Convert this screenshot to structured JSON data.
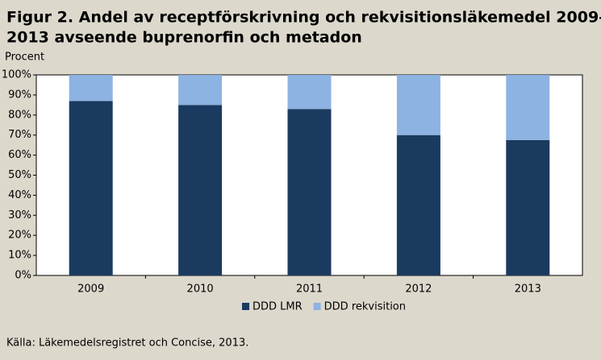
{
  "chart_data": {
    "type": "stacked_bar",
    "title": [
      "Figur 2. Andel av receptförskrivning och rekvisitionsläkemedel 2009–",
      "2013 avseende buprenorfin och metadon"
    ],
    "y_label": "Procent",
    "source": "Källa: Läkemedelsregistret och Concise, 2013.",
    "categories": [
      "2009",
      "2010",
      "2011",
      "2012",
      "2013"
    ],
    "series": [
      {
        "name": "DDD LMR",
        "color": "#1b3a5f",
        "values": [
          87,
          85,
          83,
          70,
          67.5
        ]
      },
      {
        "name": "DDD rekvisition",
        "color": "#8db3e2",
        "values": [
          13,
          15,
          17,
          30,
          32.5
        ]
      }
    ],
    "ylim": [
      0,
      100
    ],
    "yticks": [
      {
        "value": 0,
        "label": "0%"
      },
      {
        "value": 10,
        "label": "10%"
      },
      {
        "value": 20,
        "label": "20%"
      },
      {
        "value": 30,
        "label": "30%"
      },
      {
        "value": 40,
        "label": "40%"
      },
      {
        "value": 50,
        "label": "50%"
      },
      {
        "value": 60,
        "label": "60%"
      },
      {
        "value": 70,
        "label": "70%"
      },
      {
        "value": 80,
        "label": "80%"
      },
      {
        "value": 90,
        "label": "90%"
      },
      {
        "value": 100,
        "label": "100%"
      }
    ],
    "legend": "bottom"
  }
}
